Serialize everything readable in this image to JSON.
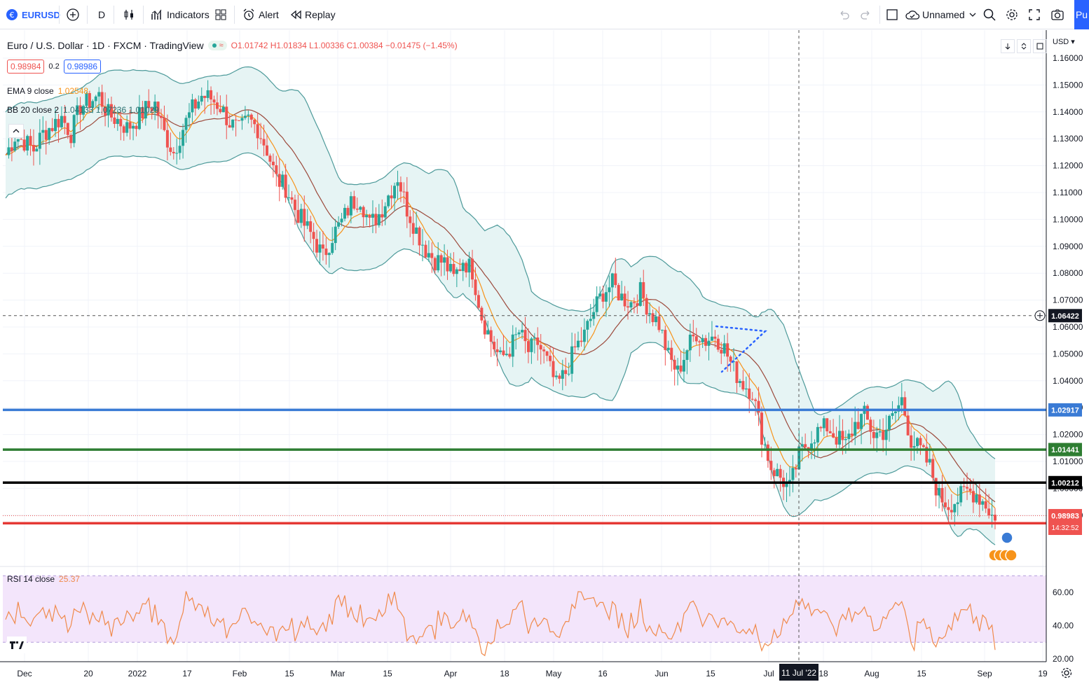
{
  "toolbar": {
    "symbol": "EURUSD",
    "interval": "D",
    "indicators_label": "Indicators",
    "alert_label": "Alert",
    "replay_label": "Replay",
    "layout_name": "Unnamed",
    "publish_label": "Pu"
  },
  "legend": {
    "title": "Euro / U.S. Dollar · 1D · FXCM · TradingView",
    "ohlc": "O1.01742 H1.01834 L1.00336 C1.00384 −0.01475 (−1.45%)",
    "sell_price": "0.98984",
    "spread": "0.2",
    "buy_price": "0.98986",
    "ema_label": "EMA 9 close",
    "ema_value": "1.02548",
    "bb_label": "BB 20 close 2",
    "bb_values": "1.04133 1.07236 1.01029",
    "rsi_label": "RSI 14 close",
    "rsi_value": "25.37"
  },
  "axis": {
    "currency": "USD",
    "cursor_date": "11 Jul '22",
    "countdown": "14:32:52"
  },
  "colors": {
    "up": "#26a69a",
    "down": "#ef5350",
    "ema": "#f7931a",
    "bb_basis": "#9c4a3c",
    "bb_band": "#4d9a9a",
    "bb_fill": "#e6f4f4",
    "line_blue": "#3a7bd5",
    "line_green": "#2e7d32",
    "line_black": "#000000",
    "line_red": "#e53935",
    "rsi": "#f08a4b",
    "rsi_bg": "#f3e5fb"
  },
  "chart_data": {
    "type": "candlestick",
    "symbol": "EURUSD",
    "timeframe": "1D",
    "y_range": [
      0.976,
      1.168
    ],
    "y_ticks": [
      "1.16000",
      "1.15000",
      "1.14000",
      "1.13000",
      "1.12000",
      "1.11000",
      "1.10000",
      "1.09000",
      "1.08000",
      "1.07000",
      "1.06000",
      "1.05000",
      "1.04000",
      "1.03000",
      "1.02000",
      "1.01000",
      "1.00000",
      "0.99000"
    ],
    "x_ticks": [
      "Dec",
      "20",
      "2022",
      "17",
      "Feb",
      "15",
      "Mar",
      "15",
      "Apr",
      "18",
      "May",
      "16",
      "Jun",
      "15",
      "Jul",
      "18",
      "Aug",
      "15",
      "Sep",
      "19"
    ],
    "close_path": [
      [
        1.124,
        1.131,
        1.129,
        1.126,
        1.132,
        1.135,
        1.138,
        1.132,
        1.142,
        1.144,
        1.146,
        1.139,
        1.137,
        1.134,
        1.137,
        1.141,
        1.143,
        1.132,
        1.125,
        1.134,
        1.141,
        1.146,
        1.145,
        1.142,
        1.136,
        1.133,
        1.137,
        1.134,
        1.126,
        1.115,
        1.112,
        1.104,
        1.098,
        1.093,
        1.086,
        1.094,
        1.099,
        1.106,
        1.108,
        1.098,
        1.102,
        1.109,
        1.116,
        1.104,
        1.096,
        1.089,
        1.085,
        1.084,
        1.078,
        1.085,
        1.081,
        1.064,
        1.055,
        1.048,
        1.052,
        1.058,
        1.051,
        1.054,
        1.047,
        1.038,
        1.043,
        1.052,
        1.057,
        1.066,
        1.073,
        1.076,
        1.071,
        1.069,
        1.073,
        1.066,
        1.061,
        1.049,
        1.043,
        1.052,
        1.058,
        1.055,
        1.057,
        1.052,
        1.044,
        1.039,
        1.036,
        1.02,
        1.008,
        1.004,
        1.0,
        1.012,
        1.018,
        1.021,
        1.023,
        1.019,
        1.016,
        1.024,
        1.027,
        1.02,
        1.021,
        1.026,
        1.033,
        1.018,
        1.014,
        1.008,
        0.997,
        0.994,
        0.996,
        0.999,
        0.998,
        0.994,
        0.988
      ],
      [
        1.125,
        1.117
      ]
    ],
    "levels": [
      {
        "price": 1.02917,
        "label": "1.02917",
        "color": "#3a7bd5"
      },
      {
        "price": 1.01441,
        "label": "1.01441",
        "color": "#2e7d32"
      },
      {
        "price": 1.00212,
        "label": "1.00212",
        "color": "#000000"
      },
      {
        "price": 0.98702,
        "label": "0.98702",
        "color": "#e53935"
      }
    ],
    "crosshair": {
      "price": 1.06422,
      "label": "1.06422",
      "date": "11 Jul '22"
    },
    "current_price": {
      "price": 0.98983,
      "label": "0.98983"
    },
    "rsi": {
      "y_range": [
        20,
        70
      ],
      "y_ticks": [
        "60.00",
        "40.00",
        "20.00"
      ],
      "upper_band": 70,
      "lower_band": 30,
      "last": 25.37
    }
  }
}
